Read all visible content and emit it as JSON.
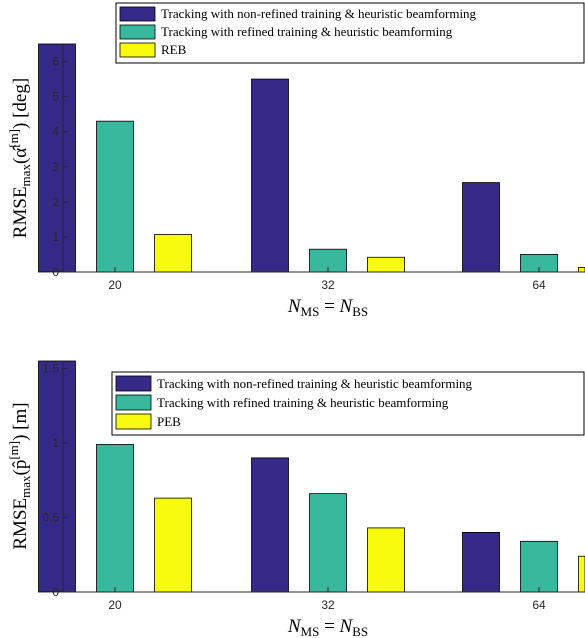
{
  "chart_data": [
    {
      "type": "bar",
      "categories": [
        "20",
        "32",
        "64"
      ],
      "series": [
        {
          "name": "Tracking with non-refined training & heuristic beamforming",
          "values": [
            6.5,
            5.5,
            2.55
          ],
          "color": "#352a87"
        },
        {
          "name": "Tracking with refined training & heuristic beamforming",
          "values": [
            4.3,
            0.65,
            0.5
          ],
          "color": "#38b99e"
        },
        {
          "name": "REB",
          "values": [
            1.07,
            0.42,
            0.13
          ],
          "color": "#f9fb0e"
        }
      ],
      "yticks": [
        "0",
        "1",
        "2",
        "3",
        "4",
        "5",
        "6"
      ],
      "ylim": [
        0,
        6.5
      ],
      "xlabel": {
        "main": "N",
        "sub1": "MS",
        "eq": " = ",
        "main2": "N",
        "sub2": "BS"
      },
      "ylabel": {
        "main": "RMSE",
        "sub": "max",
        "rest": "(α̂",
        "sup": "[m]",
        "tail": ") [deg]"
      },
      "legend_position": "top-right"
    },
    {
      "type": "bar",
      "categories": [
        "20",
        "32",
        "64"
      ],
      "series": [
        {
          "name": "Tracking with non-refined training & heuristic beamforming",
          "values": [
            1.55,
            0.9,
            0.4
          ],
          "color": "#352a87"
        },
        {
          "name": "Tracking with refined training & heuristic beamforming",
          "values": [
            0.99,
            0.66,
            0.34
          ],
          "color": "#38b99e"
        },
        {
          "name": "PEB",
          "values": [
            0.63,
            0.43,
            0.24
          ],
          "color": "#f9fb0e"
        }
      ],
      "yticks": [
        "0",
        "0.5",
        "1",
        "1.5"
      ],
      "ylim": [
        0,
        1.55
      ],
      "xlabel": {
        "main": "N",
        "sub1": "MS",
        "eq": " = ",
        "main2": "N",
        "sub2": "BS"
      },
      "ylabel": {
        "main": "RMSE",
        "sub": "max",
        "rest": "(p̂",
        "sup": "[m]",
        "tail": ") [m]"
      },
      "legend_position": "top-right"
    }
  ]
}
